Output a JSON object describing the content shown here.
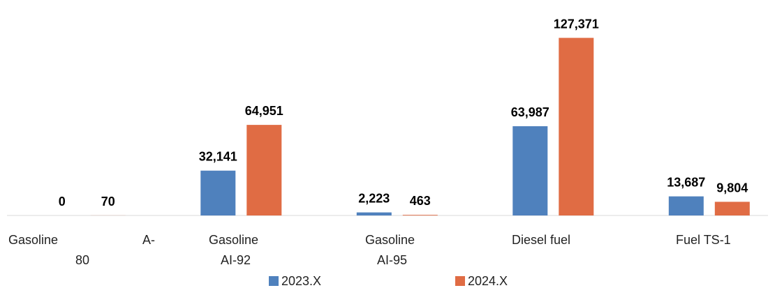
{
  "chart_data": {
    "type": "bar",
    "categories": [
      "Gasoline A-80",
      "Gasoline AI-92",
      "Gasoline AI-95",
      "Diesel fuel",
      "Fuel TS-1"
    ],
    "series": [
      {
        "name": "2023.X",
        "color": "#4F81BD",
        "values": [
          0,
          32141,
          2223,
          63987,
          13687
        ],
        "labels": [
          "0",
          "32,141",
          "2,223",
          "63,987",
          "13,687"
        ]
      },
      {
        "name": "2024.X",
        "color": "#E06C44",
        "values": [
          70,
          64951,
          463,
          127371,
          9804
        ],
        "labels": [
          "70",
          "64,951",
          "463",
          "127,371",
          "9,804"
        ]
      }
    ],
    "ylim": [
      0,
      135000
    ],
    "grid": false,
    "legend": "bottom",
    "category_label_lines": {
      "a80": {
        "line1_left": "Gasoline",
        "line1_right": "A-",
        "line2": "80"
      },
      "ai92": {
        "line1": "Gasoline",
        "line2": "AI-92"
      },
      "ai95": {
        "line1": "Gasoline",
        "line2": "AI-95"
      },
      "diesel": {
        "line1": "Diesel fuel"
      },
      "ts1": {
        "line1": "Fuel TS-1"
      }
    }
  }
}
